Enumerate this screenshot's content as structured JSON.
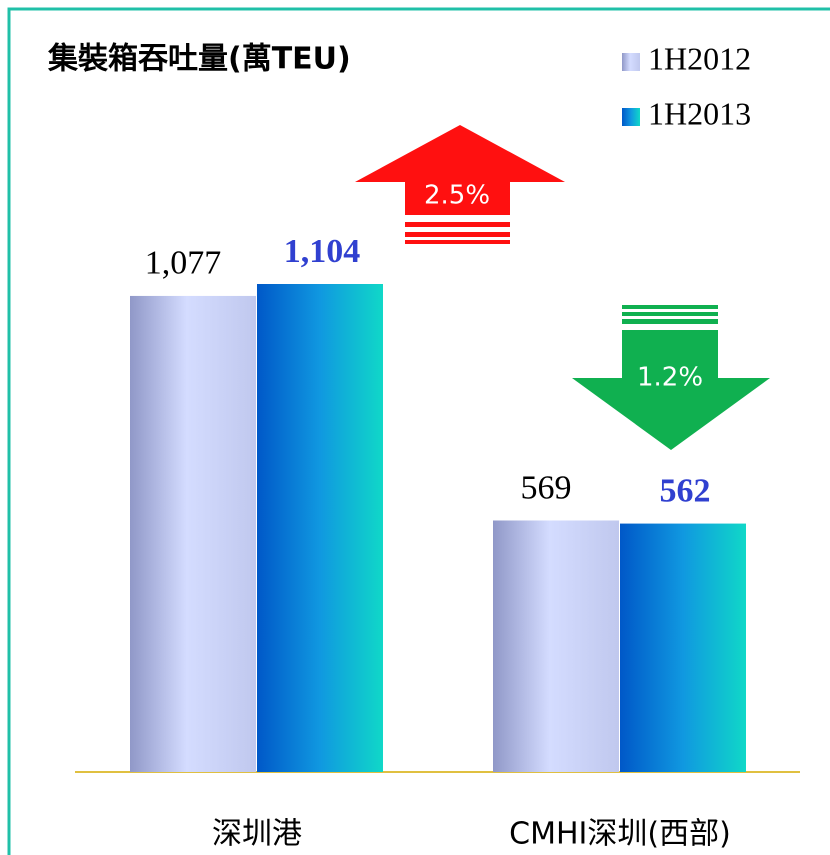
{
  "chart_data": {
    "type": "bar",
    "title": "集裝箱吞吐量(萬TEU)",
    "categories": [
      "深圳港",
      "CMHI深圳(西部)"
    ],
    "series": [
      {
        "name": "1H2012",
        "color": "#c8d0f8",
        "values": [
          1077,
          569
        ],
        "value_labels": [
          "1,077",
          "569"
        ]
      },
      {
        "name": "1H2013",
        "color": "#1090e0",
        "values": [
          1104,
          562
        ],
        "value_labels": [
          "1,104",
          "562"
        ]
      }
    ],
    "annotations": [
      "2.5%",
      "1.2%"
    ]
  }
}
